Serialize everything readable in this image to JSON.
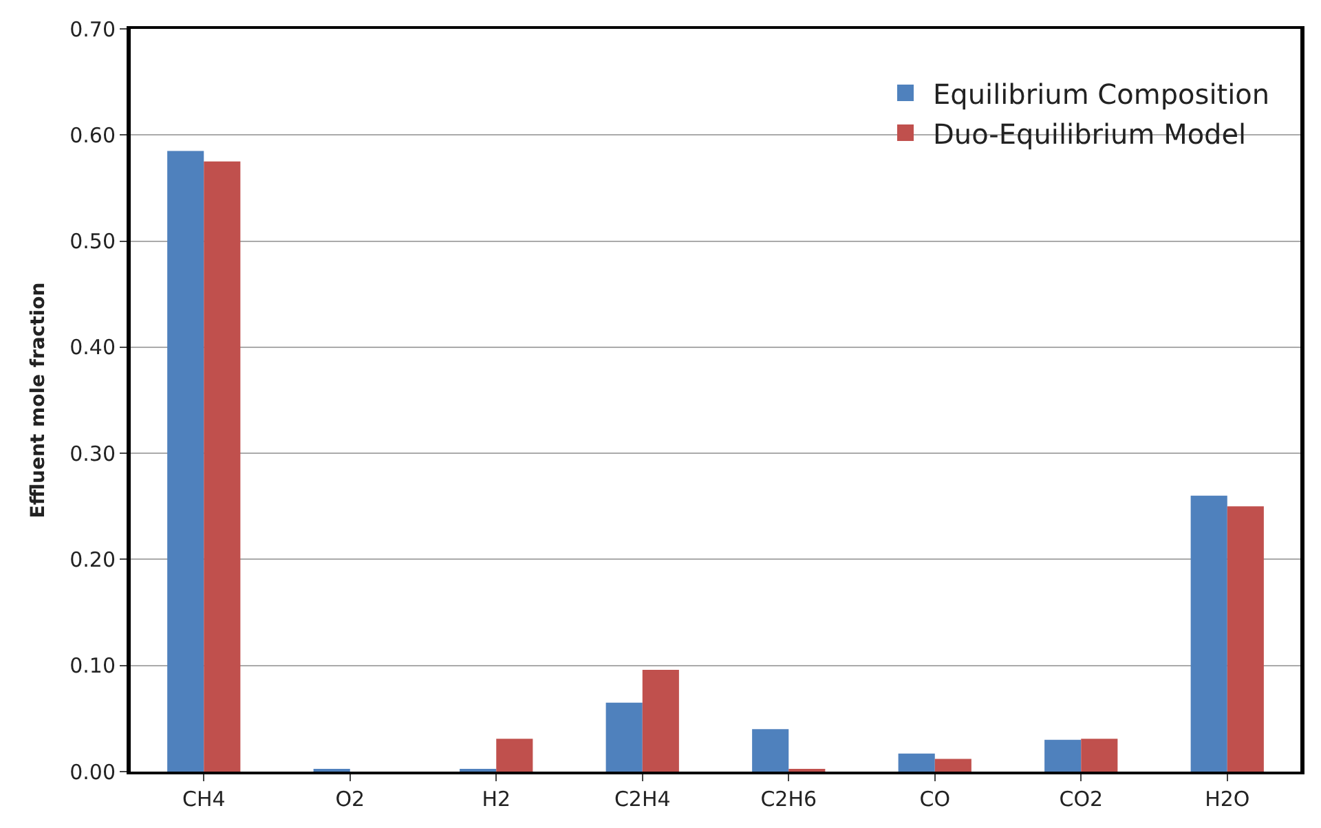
{
  "chart_data": {
    "type": "bar",
    "ylabel": "Effluent mole fraction",
    "categories": [
      "CH4",
      "O2",
      "H2",
      "C2H4",
      "C2H6",
      "CO",
      "CO2",
      "H2O"
    ],
    "series": [
      {
        "name": "Equilibrium Composition",
        "color": "#4f81bd",
        "values": [
          0.585,
          0.002,
          0.002,
          0.065,
          0.04,
          0.017,
          0.03,
          0.26
        ]
      },
      {
        "name": "Duo-Equilibrium Model",
        "color": "#c0504d",
        "values": [
          0.575,
          0.0,
          0.031,
          0.096,
          0.002,
          0.012,
          0.031,
          0.25
        ]
      }
    ],
    "ylim": [
      0,
      0.7
    ],
    "yticks": [
      {
        "value": 0,
        "label": "0.00"
      },
      {
        "value": 0.1,
        "label": "0.10"
      },
      {
        "value": 0.2,
        "label": "0.20"
      },
      {
        "value": 0.3,
        "label": "0.30"
      },
      {
        "value": 0.4,
        "label": "0.40"
      },
      {
        "value": 0.5,
        "label": "0.50"
      },
      {
        "value": 0.6,
        "label": "0.60"
      },
      {
        "value": 0.7,
        "label": "0.70"
      }
    ],
    "grid": "y",
    "legend": "top right"
  }
}
